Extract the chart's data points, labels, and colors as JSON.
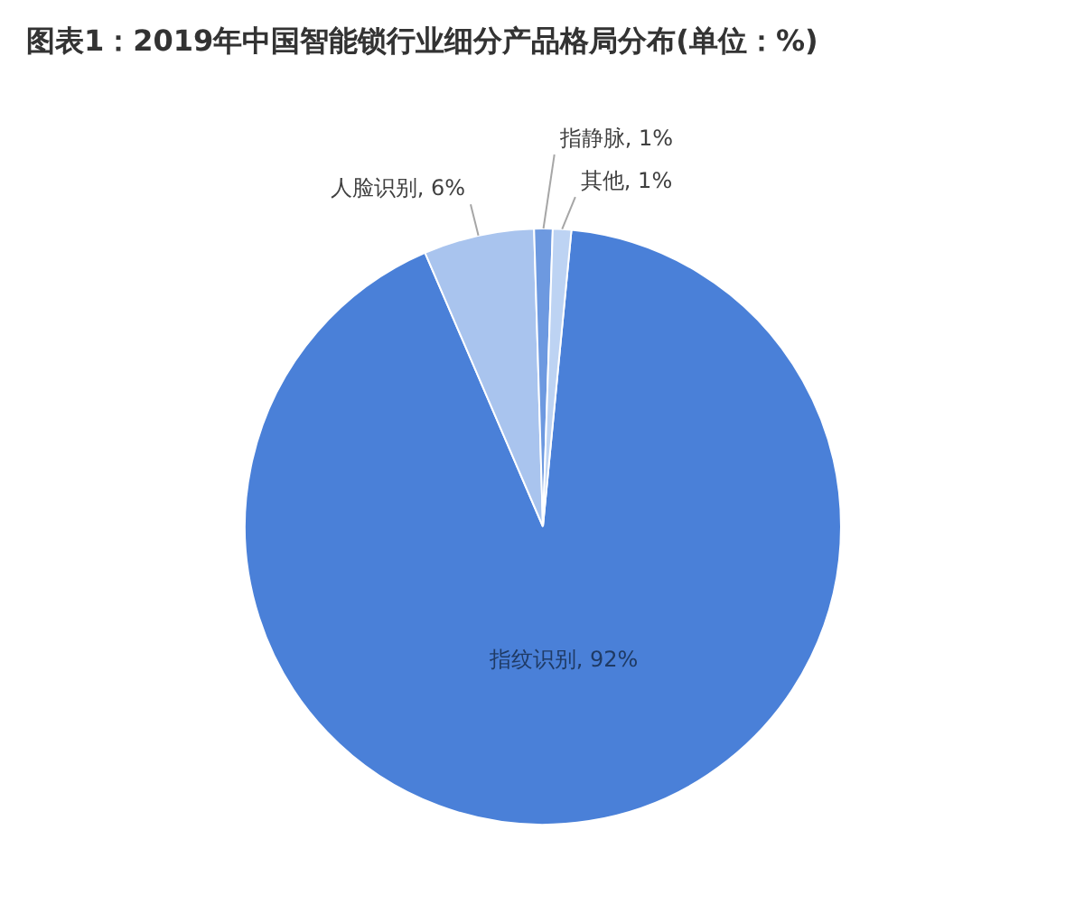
{
  "chart_data": {
    "type": "pie",
    "title": "图表1：2019年中国智能锁行业细分产品格局分布(单位：%)",
    "categories": [
      "指纹识别",
      "人脸识别",
      "指静脉",
      "其他"
    ],
    "values": [
      92,
      6,
      1,
      1
    ],
    "colors": [
      "#4a80d8",
      "#a9c4ee",
      "#6d99e0",
      "#bdd3f3"
    ],
    "value_labels": [
      "92%",
      "6%",
      "1%",
      "1%"
    ]
  }
}
